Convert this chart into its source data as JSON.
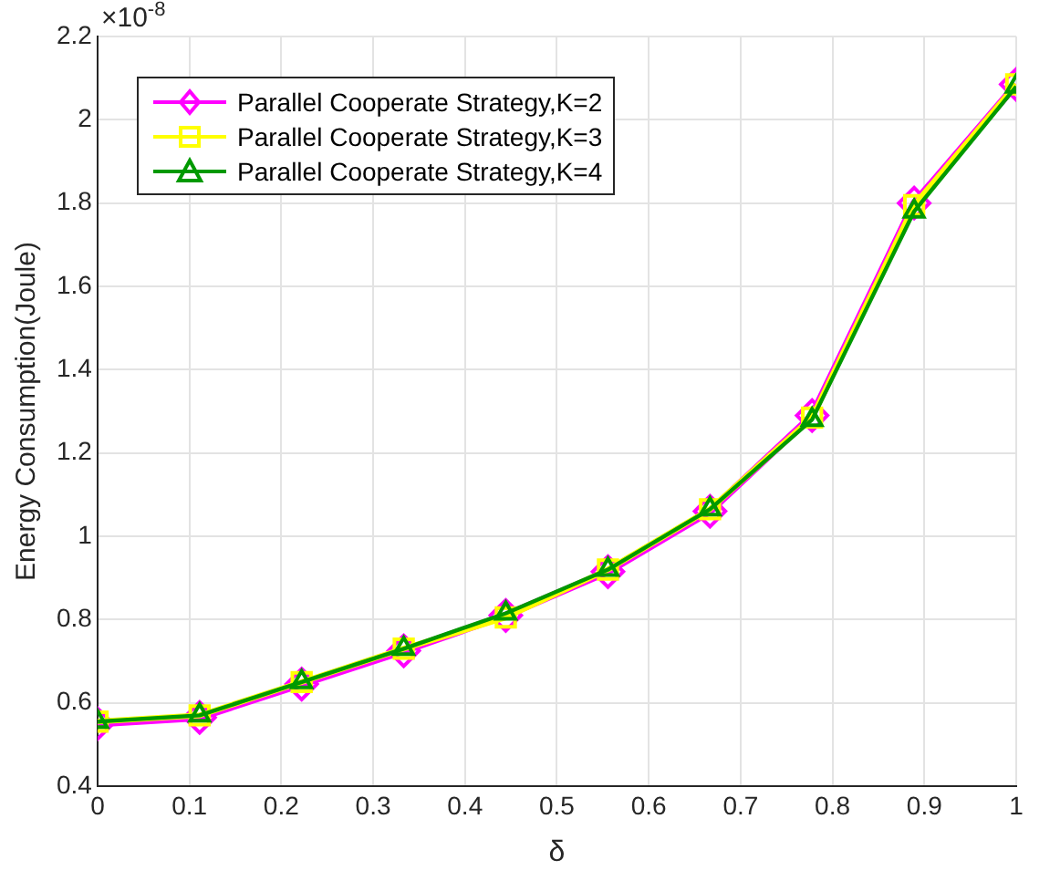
{
  "chart_data": {
    "type": "line",
    "xlabel": "δ",
    "ylabel": "Energy Consumption(Joule)",
    "annotations": [
      "×10$^{-8}$"
    ],
    "x": [
      0,
      0.1111,
      0.2222,
      0.3333,
      0.4444,
      0.5556,
      0.6667,
      0.7778,
      0.8889,
      1
    ],
    "series": [
      {
        "name": "Parallel Cooperate Strategy,K=2",
        "color": "#ff00ff",
        "marker": "diamond",
        "values": [
          0.55,
          0.565,
          0.645,
          0.725,
          0.81,
          0.915,
          1.06,
          1.29,
          1.8,
          2.085
        ]
      },
      {
        "name": "Parallel Cooperate Strategy,K=3",
        "color": "#ffff00",
        "marker": "square",
        "values": [
          0.555,
          0.57,
          0.65,
          0.73,
          0.805,
          0.92,
          1.065,
          1.285,
          1.795,
          2.085
        ]
      },
      {
        "name": "Parallel Cooperate Strategy,K=4",
        "color": "#009900",
        "marker": "triangle",
        "values": [
          0.555,
          0.57,
          0.65,
          0.73,
          0.815,
          0.92,
          1.065,
          1.28,
          1.78,
          2.08
        ]
      }
    ],
    "xlim": [
      0,
      1
    ],
    "xticks": [
      0,
      0.1,
      0.2,
      0.3,
      0.4,
      0.5,
      0.6,
      0.7,
      0.8,
      0.9,
      1
    ],
    "ylim": [
      0.4,
      2.2
    ],
    "yticks": [
      {
        "value": 0.4,
        "label": "0.4"
      },
      {
        "value": 0.6,
        "label": "0.6"
      },
      {
        "value": 0.8,
        "label": "0.8"
      },
      1,
      {
        "value": 1.2,
        "label": "1.2"
      },
      {
        "value": 1.4,
        "label": "1.4"
      },
      {
        "value": 1.6,
        "label": "1.6"
      },
      {
        "value": 1.8,
        "label": "1.8"
      },
      2,
      {
        "value": 2.2,
        "label": "2.2"
      }
    ],
    "grid": true,
    "legend": "top left",
    "line_style": "solid"
  }
}
